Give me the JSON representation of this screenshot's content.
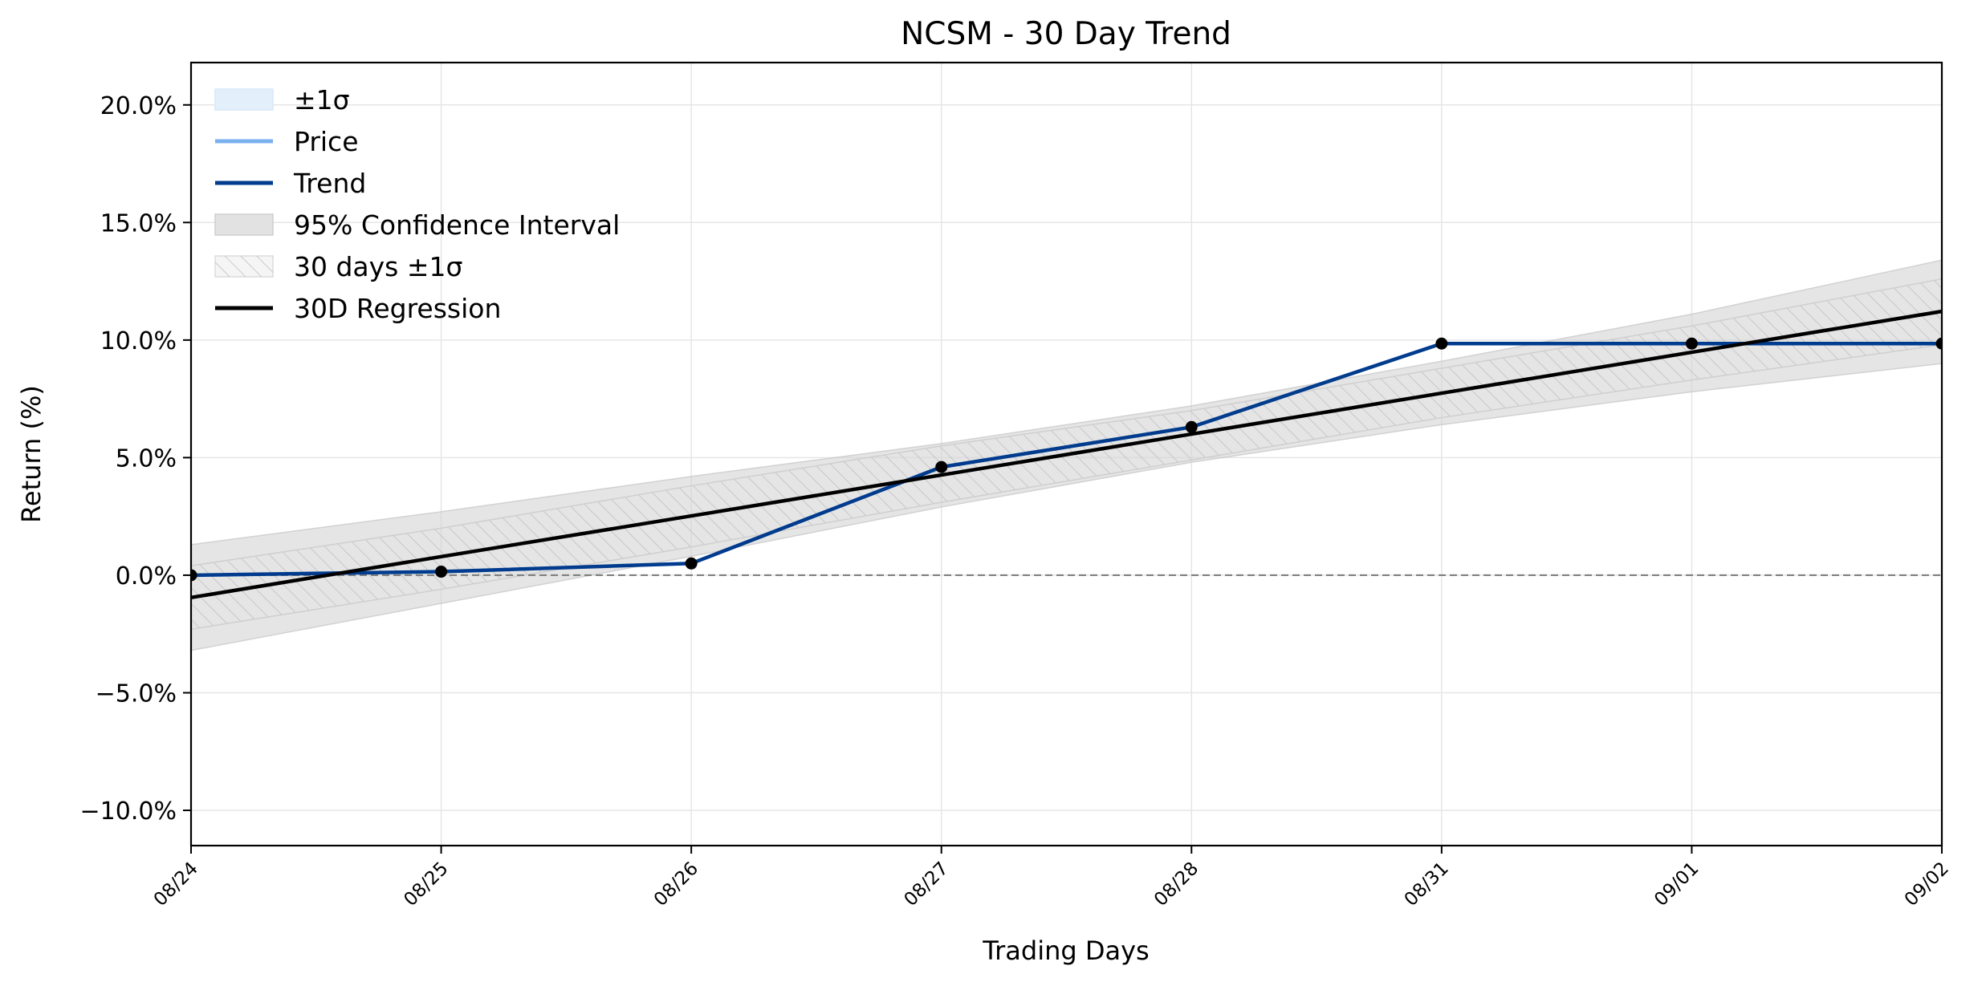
{
  "chart_data": {
    "type": "line",
    "title": "NCSM - 30 Day Trend",
    "xlabel": "Trading Days",
    "ylabel": "Return (%)",
    "categories": [
      "08/24",
      "08/25",
      "08/26",
      "08/27",
      "08/28",
      "08/31",
      "09/01",
      "09/02"
    ],
    "ylim": [
      -11.5,
      21.8
    ],
    "yticks": [
      -10,
      -5,
      0,
      5,
      10,
      15,
      20
    ],
    "ytick_labels": [
      "−10.0%",
      "−5.0%",
      "0.0%",
      "5.0%",
      "10.0%",
      "15.0%",
      "20.0%"
    ],
    "grid": true,
    "legend_position": "top-left",
    "series": [
      {
        "name": "Trend",
        "values": [
          0.0,
          0.15,
          0.5,
          4.6,
          6.3,
          9.85,
          9.85,
          9.85
        ],
        "color": "#003b8e"
      },
      {
        "name": "30D Regression",
        "values": [
          -0.95,
          0.79,
          2.52,
          4.26,
          6.0,
          7.74,
          9.48,
          11.22
        ],
        "color": "#000000"
      }
    ],
    "bands": [
      {
        "name": "95% Confidence Interval",
        "lower": [
          -3.2,
          -1.2,
          0.8,
          2.9,
          4.8,
          6.4,
          7.8,
          9.0
        ],
        "upper": [
          1.3,
          2.7,
          4.2,
          5.6,
          7.2,
          9.1,
          11.1,
          13.4
        ],
        "color": "#d3d3d3"
      },
      {
        "name": "30 days ±1σ",
        "lower": [
          -2.3,
          -0.6,
          1.2,
          3.1,
          4.9,
          6.7,
          8.3,
          9.8
        ],
        "upper": [
          0.4,
          2.0,
          3.8,
          5.5,
          7.0,
          8.8,
          10.6,
          12.6
        ],
        "color": "#c8c8c8"
      }
    ],
    "reference_line": {
      "y": 0,
      "color": "#808080",
      "style": "dashed"
    },
    "legend": [
      {
        "label": "±1σ",
        "kind": "patch",
        "color": "#e3f0fc"
      },
      {
        "label": "Price",
        "kind": "line",
        "color": "#7ab0ee"
      },
      {
        "label": "Trend",
        "kind": "line",
        "color": "#003b8e"
      },
      {
        "label": "95% Confidence Interval",
        "kind": "patch",
        "color": "#e2e2e2"
      },
      {
        "label": "30 days ±1σ",
        "kind": "hatch",
        "color": "#ececec"
      },
      {
        "label": "30D Regression",
        "kind": "line",
        "color": "#000000"
      }
    ]
  }
}
